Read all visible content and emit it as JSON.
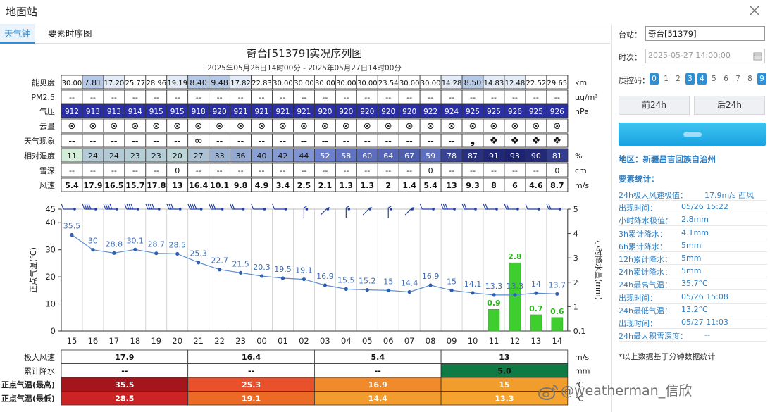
{
  "window": {
    "title": "地面站"
  },
  "tabs": [
    {
      "label": "天气钟",
      "active": true
    },
    {
      "label": "要素时序图",
      "active": false
    }
  ],
  "chart_data": {
    "type": "line",
    "title": "奇台[51379]实况序列图",
    "subtitle": "2025年05月26日14时00分 - 2025年05月27日14时00分",
    "hours": [
      "15",
      "16",
      "17",
      "18",
      "19",
      "20",
      "21",
      "22",
      "23",
      "00",
      "01",
      "02",
      "03",
      "04",
      "05",
      "06",
      "07",
      "08",
      "09",
      "10",
      "11",
      "12",
      "13",
      "14"
    ],
    "rows": {
      "visibility": {
        "label": "能见度",
        "unit": "km",
        "values": [
          "30.00",
          "7.81",
          "17.20",
          "25.77",
          "28.96",
          "19.19",
          "8.40",
          "9.48",
          "17.82",
          "22.83",
          "30.00",
          "30.00",
          "30.00",
          "30.00",
          "30.00",
          "23.54",
          "30.00",
          "30.00",
          "14.28",
          "8.50",
          "14.83",
          "12.48",
          "22.52",
          "29.65"
        ]
      },
      "pm25": {
        "label": "PM2.5",
        "unit": "μg/m³",
        "values": [
          "--",
          "--",
          "--",
          "--",
          "--",
          "--",
          "--",
          "--",
          "--",
          "--",
          "--",
          "--",
          "--",
          "--",
          "--",
          "--",
          "--",
          "--",
          "--",
          "--",
          "--",
          "--",
          "--",
          "--"
        ]
      },
      "pressure": {
        "label": "气压",
        "unit": "hPa",
        "values": [
          "912",
          "913",
          "913",
          "914",
          "915",
          "915",
          "918",
          "920",
          "921",
          "921",
          "921",
          "921",
          "920",
          "920",
          "920",
          "920",
          "920",
          "922",
          "924",
          "925",
          "925",
          "926",
          "925",
          "926"
        ]
      },
      "cloud": {
        "label": "云量",
        "unit": "",
        "values": [
          "⊗",
          "⊗",
          "⊗",
          "⊗",
          "⊗",
          "⊗",
          "⊗",
          "⊗",
          "⊗",
          "⊗",
          "⊗",
          "⊗",
          "⊗",
          "⊗",
          "⊗",
          "⊗",
          "⊗",
          "⊗",
          "⊗",
          "⊗",
          "⊗",
          "⊗",
          "⊗",
          "⊗"
        ]
      },
      "weather": {
        "label": "天气现象",
        "unit": "",
        "values": [
          "--",
          "--",
          "--",
          "--",
          "--",
          "--",
          "∞",
          "--",
          "--",
          "--",
          "--",
          "--",
          "--",
          "--",
          "--",
          "--",
          "--",
          "--",
          "--",
          "❟",
          "❖",
          "❖",
          "❖",
          "❖"
        ]
      },
      "humidity": {
        "label": "相对湿度",
        "unit": "%",
        "values": [
          11,
          24,
          24,
          23,
          23,
          20,
          27,
          33,
          36,
          40,
          42,
          44,
          52,
          58,
          60,
          64,
          67,
          59,
          78,
          87,
          91,
          93,
          90,
          81
        ]
      },
      "snow": {
        "label": "雪深",
        "unit": "cm",
        "values": [
          "--",
          "--",
          "--",
          "--",
          "--",
          "0",
          "--",
          "--",
          "--",
          "--",
          "--",
          "--",
          "--",
          "--",
          "--",
          "--",
          "--",
          "0",
          "--",
          "--",
          "--",
          "--",
          "--",
          "0"
        ]
      },
      "wind": {
        "label": "风速",
        "unit": "m/s",
        "values": [
          "5.4",
          "17.9",
          "16.5",
          "15.7",
          "17.8",
          "13",
          "16.4",
          "10.1",
          "9.8",
          "4.9",
          "3.4",
          "2.5",
          "2.1",
          "1.3",
          "1.3",
          "2",
          "1.4",
          "5.4",
          "13",
          "9.3",
          "8",
          "6",
          "4.6",
          "8.7"
        ]
      }
    },
    "temperature": {
      "ylabel": "正点气温(℃)",
      "ylim": [
        0,
        45
      ],
      "yticks": [
        0,
        10,
        20,
        30,
        40,
        45
      ],
      "values": [
        35.5,
        30,
        28.8,
        30.1,
        28.7,
        28.5,
        25.3,
        22.7,
        21.5,
        20.3,
        19.5,
        19.1,
        16.9,
        15.5,
        15.2,
        15,
        14.4,
        16.9,
        15,
        14.1,
        13.3,
        13.3,
        14,
        13.7
      ]
    },
    "precip": {
      "ylabel": "小时降水量(mm)",
      "yticks": [
        "0.1",
        "1",
        "2",
        "3",
        "4",
        "5"
      ],
      "values": [
        null,
        null,
        null,
        null,
        null,
        null,
        null,
        null,
        null,
        null,
        null,
        null,
        null,
        null,
        null,
        null,
        null,
        null,
        null,
        null,
        0.9,
        2.8,
        0.7,
        0.6
      ]
    },
    "summary": {
      "labels": {
        "max_wind": "极大风速",
        "acc_precip": "累计降水",
        "tmax": "正点气温(最高)",
        "tmin": "正点气温(最低)"
      },
      "units": {
        "max_wind": "m/s",
        "acc_precip": "mm",
        "tmax": "℃",
        "tmin": "℃"
      },
      "max_wind": [
        "17.9",
        "16.4",
        "5.4",
        "13"
      ],
      "acc_precip": [
        "--",
        "--",
        "--",
        "5.0"
      ],
      "tmax": [
        "35.5",
        "25.3",
        "16.9",
        "15"
      ],
      "tmin": [
        "28.5",
        "19.1",
        "14.4",
        "13.3"
      ]
    }
  },
  "sidebar": {
    "station_label": "台站：",
    "station_value": "奇台[51379]",
    "time_label": "时次：",
    "time_value": "2025-05-27 14:00:00",
    "qc_label": "质控码：",
    "qc_codes": [
      {
        "v": "0",
        "on": true
      },
      {
        "v": "1",
        "on": false
      },
      {
        "v": "2",
        "on": false
      },
      {
        "v": "3",
        "on": true
      },
      {
        "v": "4",
        "on": true
      },
      {
        "v": "5",
        "on": false
      },
      {
        "v": "6",
        "on": false
      },
      {
        "v": "7",
        "on": false
      },
      {
        "v": "8",
        "on": false
      },
      {
        "v": "9",
        "on": true
      }
    ],
    "prev_button": "前24h",
    "next_button": "后24h",
    "region": "地区：新疆昌吉回族自治州",
    "stats_title": "要素统计：",
    "stats": [
      {
        "k": "24h极大风速极值：",
        "v": "17.9m/s 西风",
        "short": true
      },
      {
        "k": "出现时间：",
        "v": "05/26 15:22",
        "short": false
      },
      {
        "k": "小时降水极值：",
        "v": "2.8mm",
        "short": false
      },
      {
        "k": "3h累计降水：",
        "v": "4.1mm",
        "short": false
      },
      {
        "k": "6h累计降水：",
        "v": "5mm",
        "short": false
      },
      {
        "k": "12h累计降水：",
        "v": "5mm",
        "short": false
      },
      {
        "k": "24h累计降水：",
        "v": "5mm",
        "short": false
      },
      {
        "k": "24h最高气温：",
        "v": "35.7°C",
        "short": false
      },
      {
        "k": "出现时间：",
        "v": "05/26 15:08",
        "short": false
      },
      {
        "k": "24h最低气温：",
        "v": "13.2°C",
        "short": false
      },
      {
        "k": "出现时间：",
        "v": "05/27 11:03",
        "short": false
      },
      {
        "k": "24h最大积雪深度：",
        "v": "--",
        "short": true
      }
    ],
    "note": "*以上数据基于分钟数据统计"
  },
  "watermark": "@weatherman_信欣"
}
